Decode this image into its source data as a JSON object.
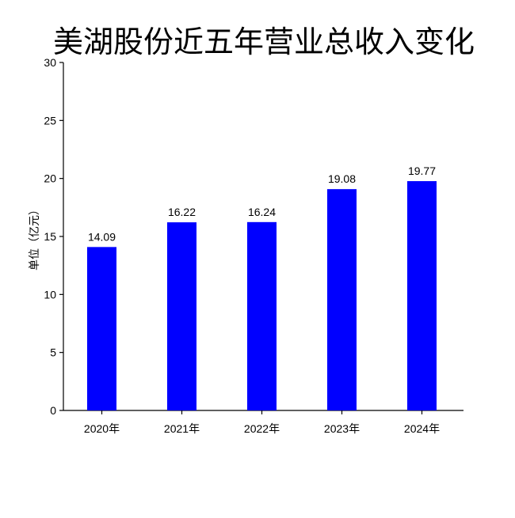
{
  "chart_data": {
    "type": "bar",
    "title": "美湖股份近五年营业总收入变化",
    "ylabel": "单位（亿元）",
    "xlabel": "",
    "categories": [
      "2020年",
      "2021年",
      "2022年",
      "2023年",
      "2024年"
    ],
    "values": [
      14.09,
      16.22,
      16.24,
      19.08,
      19.77
    ],
    "data_labels": [
      "14.09",
      "16.22",
      "16.24",
      "19.08",
      "19.77"
    ],
    "ylim": [
      0,
      30
    ],
    "yticks": [
      0,
      5,
      10,
      15,
      20,
      25,
      30
    ],
    "bar_color": "#0000ff",
    "grid": false,
    "legend": "none"
  }
}
